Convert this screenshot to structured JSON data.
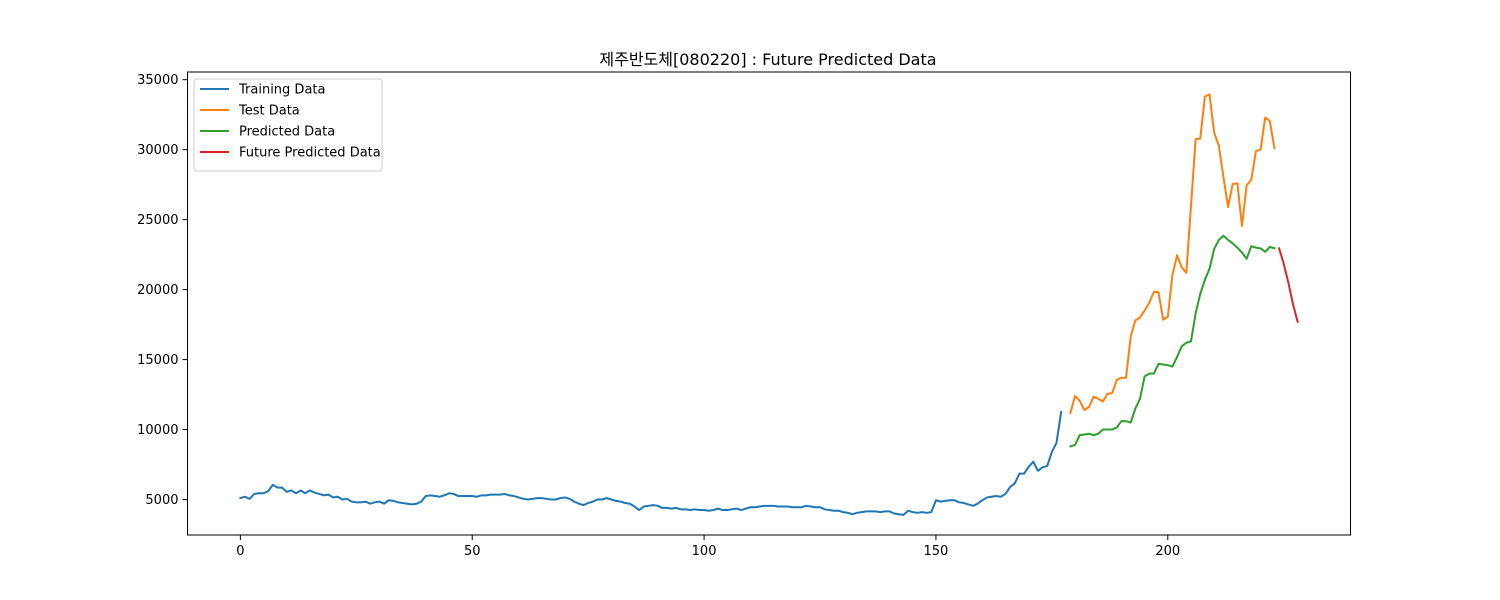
{
  "chart_data": {
    "type": "line",
    "title": "제주반도체[080220] : Future Predicted Data",
    "xlabel": "",
    "ylabel": "",
    "xlim": [
      -11.4,
      239.4
    ],
    "ylim": [
      2465,
      35550
    ],
    "x_ticks": [
      0,
      50,
      100,
      150,
      200
    ],
    "y_ticks": [
      5000,
      10000,
      15000,
      20000,
      25000,
      30000,
      35000
    ],
    "grid": false,
    "legend_position": "upper left",
    "series": [
      {
        "name": "Training Data",
        "color": "#1f77b4",
        "x_start": 0,
        "values": [
          5100,
          5200,
          5050,
          5400,
          5450,
          5450,
          5600,
          6050,
          5850,
          5850,
          5550,
          5650,
          5450,
          5650,
          5450,
          5650,
          5500,
          5400,
          5300,
          5350,
          5150,
          5200,
          5000,
          5050,
          4850,
          4800,
          4800,
          4850,
          4700,
          4800,
          4850,
          4700,
          4950,
          4900,
          4800,
          4750,
          4700,
          4650,
          4700,
          4850,
          5250,
          5300,
          5250,
          5200,
          5300,
          5450,
          5400,
          5250,
          5250,
          5250,
          5250,
          5200,
          5300,
          5300,
          5350,
          5350,
          5350,
          5400,
          5300,
          5250,
          5150,
          5050,
          5000,
          5050,
          5100,
          5100,
          5050,
          5000,
          5000,
          5100,
          5150,
          5050,
          4850,
          4700,
          4600,
          4750,
          4850,
          5000,
          5000,
          5100,
          5000,
          4900,
          4850,
          4750,
          4700,
          4500,
          4250,
          4500,
          4550,
          4600,
          4550,
          4400,
          4400,
          4350,
          4400,
          4300,
          4300,
          4250,
          4300,
          4250,
          4250,
          4200,
          4250,
          4350,
          4250,
          4250,
          4300,
          4350,
          4250,
          4350,
          4450,
          4450,
          4500,
          4550,
          4550,
          4550,
          4500,
          4500,
          4500,
          4450,
          4450,
          4450,
          4550,
          4500,
          4450,
          4450,
          4300,
          4250,
          4200,
          4200,
          4100,
          4050,
          3950,
          4050,
          4100,
          4150,
          4150,
          4150,
          4100,
          4150,
          4150,
          4000,
          3950,
          3900,
          4200,
          4100,
          4050,
          4100,
          4050,
          4100,
          4950,
          4850,
          4900,
          4950,
          4950,
          4800,
          4750,
          4650,
          4550,
          4700,
          4950,
          5150,
          5200,
          5250,
          5200,
          5400,
          5900,
          6150,
          6850,
          6850,
          7350,
          7700,
          7050,
          7300,
          7400,
          8400,
          9050,
          11250
        ]
      },
      {
        "name": "Test Data",
        "color": "#ff7f0e",
        "x_start": 179,
        "values": [
          11200,
          12400,
          12050,
          11400,
          11600,
          12350,
          12200,
          12000,
          12550,
          12600,
          13550,
          13700,
          13700,
          16650,
          17800,
          18000,
          18500,
          19050,
          19850,
          19800,
          17850,
          18050,
          21050,
          22450,
          21600,
          21200,
          26000,
          30750,
          30800,
          33800,
          33950,
          31200,
          30300,
          28050,
          25900,
          27550,
          27600,
          24550,
          27450,
          27850,
          29900,
          30000,
          32300,
          32050,
          30100
        ]
      },
      {
        "name": "Predicted Data",
        "color": "#2ca02c",
        "x_start": 179,
        "values": [
          8800,
          8900,
          9600,
          9650,
          9700,
          9600,
          9700,
          10000,
          10000,
          10000,
          10150,
          10600,
          10600,
          10500,
          11500,
          12200,
          13800,
          14000,
          14000,
          14700,
          14650,
          14600,
          14500,
          15200,
          15950,
          16200,
          16300,
          18300,
          19700,
          20700,
          21500,
          22900,
          23550,
          23850,
          23550,
          23300,
          23000,
          22650,
          22200,
          23100,
          23000,
          22950,
          22700,
          23050,
          22950
        ]
      },
      {
        "name": "Future Predicted Data",
        "color": "#d62728",
        "x_start": 224,
        "values": [
          22950,
          21850,
          20500,
          18950,
          17700
        ]
      }
    ]
  }
}
